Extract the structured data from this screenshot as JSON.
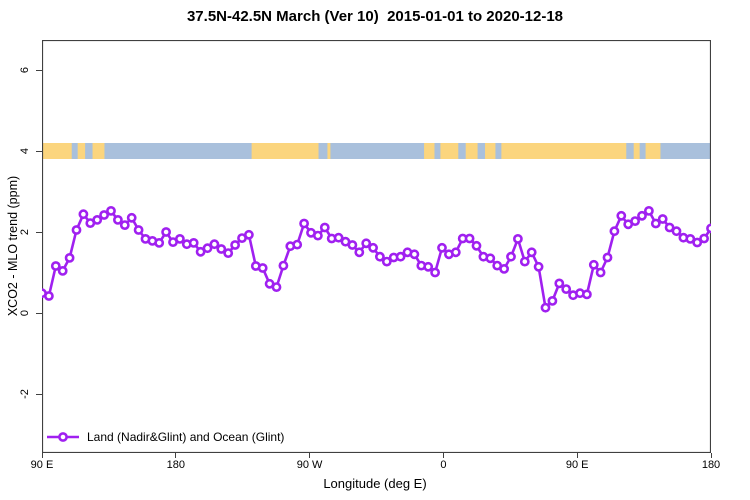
{
  "title": "37.5N-42.5N March (Ver 10)  2015-01-01 to 2020-12-18",
  "axes": {
    "x_label": "Longitude (deg E)",
    "y_label": "XCO2 - MLO trend (ppm)",
    "x_ticks": [
      "90 E",
      "180",
      "90 W",
      "0",
      "90 E",
      "180"
    ],
    "y_ticks": [
      "-2",
      "0",
      "2",
      "4",
      "6"
    ]
  },
  "legend": {
    "label": "Land (Nadir&Glint) and Ocean (Glint)"
  },
  "colors": {
    "series": "#a020f0",
    "land": "#fbd57e",
    "ocean": "#a9c0dc",
    "axis": "#404040",
    "text": "#000000"
  },
  "chart_data": {
    "type": "line",
    "title": "37.5N-42.5N March (Ver 10)  2015-01-01 to 2020-12-18",
    "xlabel": "Longitude (deg E)",
    "ylabel": "XCO2 - MLO trend (ppm)",
    "x_axis_note": "longitude wraps eastward from 90E through 180, 90W, 0, 90E to 180 (450 deg span); data points evenly spaced",
    "x_tick_labels": [
      "90 E",
      "180",
      "90 W",
      "0",
      "90 E",
      "180"
    ],
    "x_tick_positions_deg": [
      0,
      90,
      180,
      270,
      360,
      450
    ],
    "x_span_deg": 450,
    "ylim": [
      -3.45,
      6.75
    ],
    "y_ticks": [
      -2,
      0,
      2,
      4,
      6
    ],
    "grid": false,
    "legend_position": "bottom-left inside plot",
    "series": [
      {
        "name": "Land (Nadir&Glint) and Ocean (Glint)",
        "marker": "open-circle",
        "values": [
          0.49,
          0.42,
          1.16,
          1.04,
          1.36,
          2.05,
          2.44,
          2.22,
          2.3,
          2.42,
          2.52,
          2.3,
          2.17,
          2.35,
          2.05,
          1.83,
          1.78,
          1.73,
          2.0,
          1.75,
          1.83,
          1.7,
          1.73,
          1.51,
          1.6,
          1.7,
          1.58,
          1.48,
          1.68,
          1.85,
          1.93,
          1.16,
          1.11,
          0.72,
          0.64,
          1.17,
          1.65,
          1.69,
          2.21,
          1.98,
          1.91,
          2.11,
          1.84,
          1.86,
          1.76,
          1.68,
          1.5,
          1.72,
          1.61,
          1.39,
          1.27,
          1.37,
          1.39,
          1.5,
          1.45,
          1.17,
          1.14,
          1.0,
          1.61,
          1.45,
          1.5,
          1.84,
          1.84,
          1.66,
          1.39,
          1.35,
          1.17,
          1.09,
          1.39,
          1.83,
          1.27,
          1.5,
          1.14,
          0.13,
          0.3,
          0.73,
          0.59,
          0.44,
          0.49,
          0.46,
          1.19,
          1.0,
          1.37,
          2.02,
          2.4,
          2.19,
          2.27,
          2.4,
          2.52,
          2.21,
          2.32,
          2.11,
          2.02,
          1.86,
          1.83,
          1.74,
          1.84,
          2.09
        ]
      }
    ],
    "map_band": {
      "description": "horizontal strip of world map at this latitude band drawn at y=4",
      "center_value": 4.0,
      "thickness_value": 0.4,
      "land_segments_deg": [
        [
          0,
          20
        ],
        [
          24,
          29
        ],
        [
          34,
          42
        ],
        [
          141,
          186
        ],
        [
          192,
          194
        ],
        [
          257,
          264
        ],
        [
          268,
          280
        ],
        [
          285,
          293
        ],
        [
          298,
          305
        ],
        [
          309,
          393
        ],
        [
          398,
          402
        ],
        [
          406,
          416
        ]
      ]
    }
  }
}
